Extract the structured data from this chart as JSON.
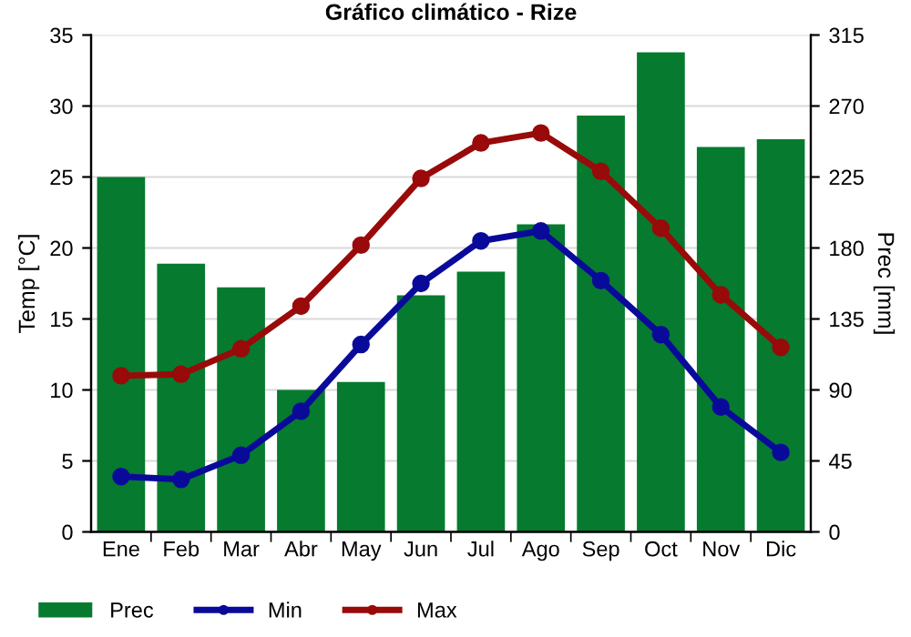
{
  "chart_data": {
    "type": "line",
    "title": "Gráfico climático - Rize",
    "ylabel": "Temp [°C]",
    "y2label": "Prec [mm]",
    "categories": [
      "Ene",
      "Feb",
      "Mar",
      "Abr",
      "May",
      "Jun",
      "Jul",
      "Ago",
      "Sep",
      "Oct",
      "Nov",
      "Dic"
    ],
    "series": [
      {
        "name": "Prec",
        "type": "bar",
        "axis": "y2",
        "color": "#067a2e",
        "values": [
          225,
          170,
          155,
          90,
          95,
          150,
          165,
          195,
          264,
          304,
          244,
          249
        ]
      },
      {
        "name": "Min",
        "color": "#0a0a9a",
        "values": [
          3.9,
          3.7,
          5.4,
          8.5,
          13.2,
          17.5,
          20.5,
          21.2,
          17.7,
          13.9,
          8.8,
          5.6
        ]
      },
      {
        "name": "Max",
        "color": "#990a0a",
        "values": [
          11.0,
          11.1,
          12.9,
          15.9,
          20.2,
          24.9,
          27.4,
          28.1,
          25.4,
          21.4,
          16.7,
          13.0
        ]
      }
    ],
    "ylim": [
      0,
      35
    ],
    "yticks": [
      0,
      5,
      10,
      15,
      20,
      25,
      30,
      35
    ],
    "y2lim": [
      0,
      315
    ],
    "y2ticks": [
      0,
      45,
      90,
      135,
      180,
      225,
      270,
      315
    ],
    "grid": true,
    "legend": "bottom left",
    "marker": "circle",
    "line_style": "solid"
  }
}
